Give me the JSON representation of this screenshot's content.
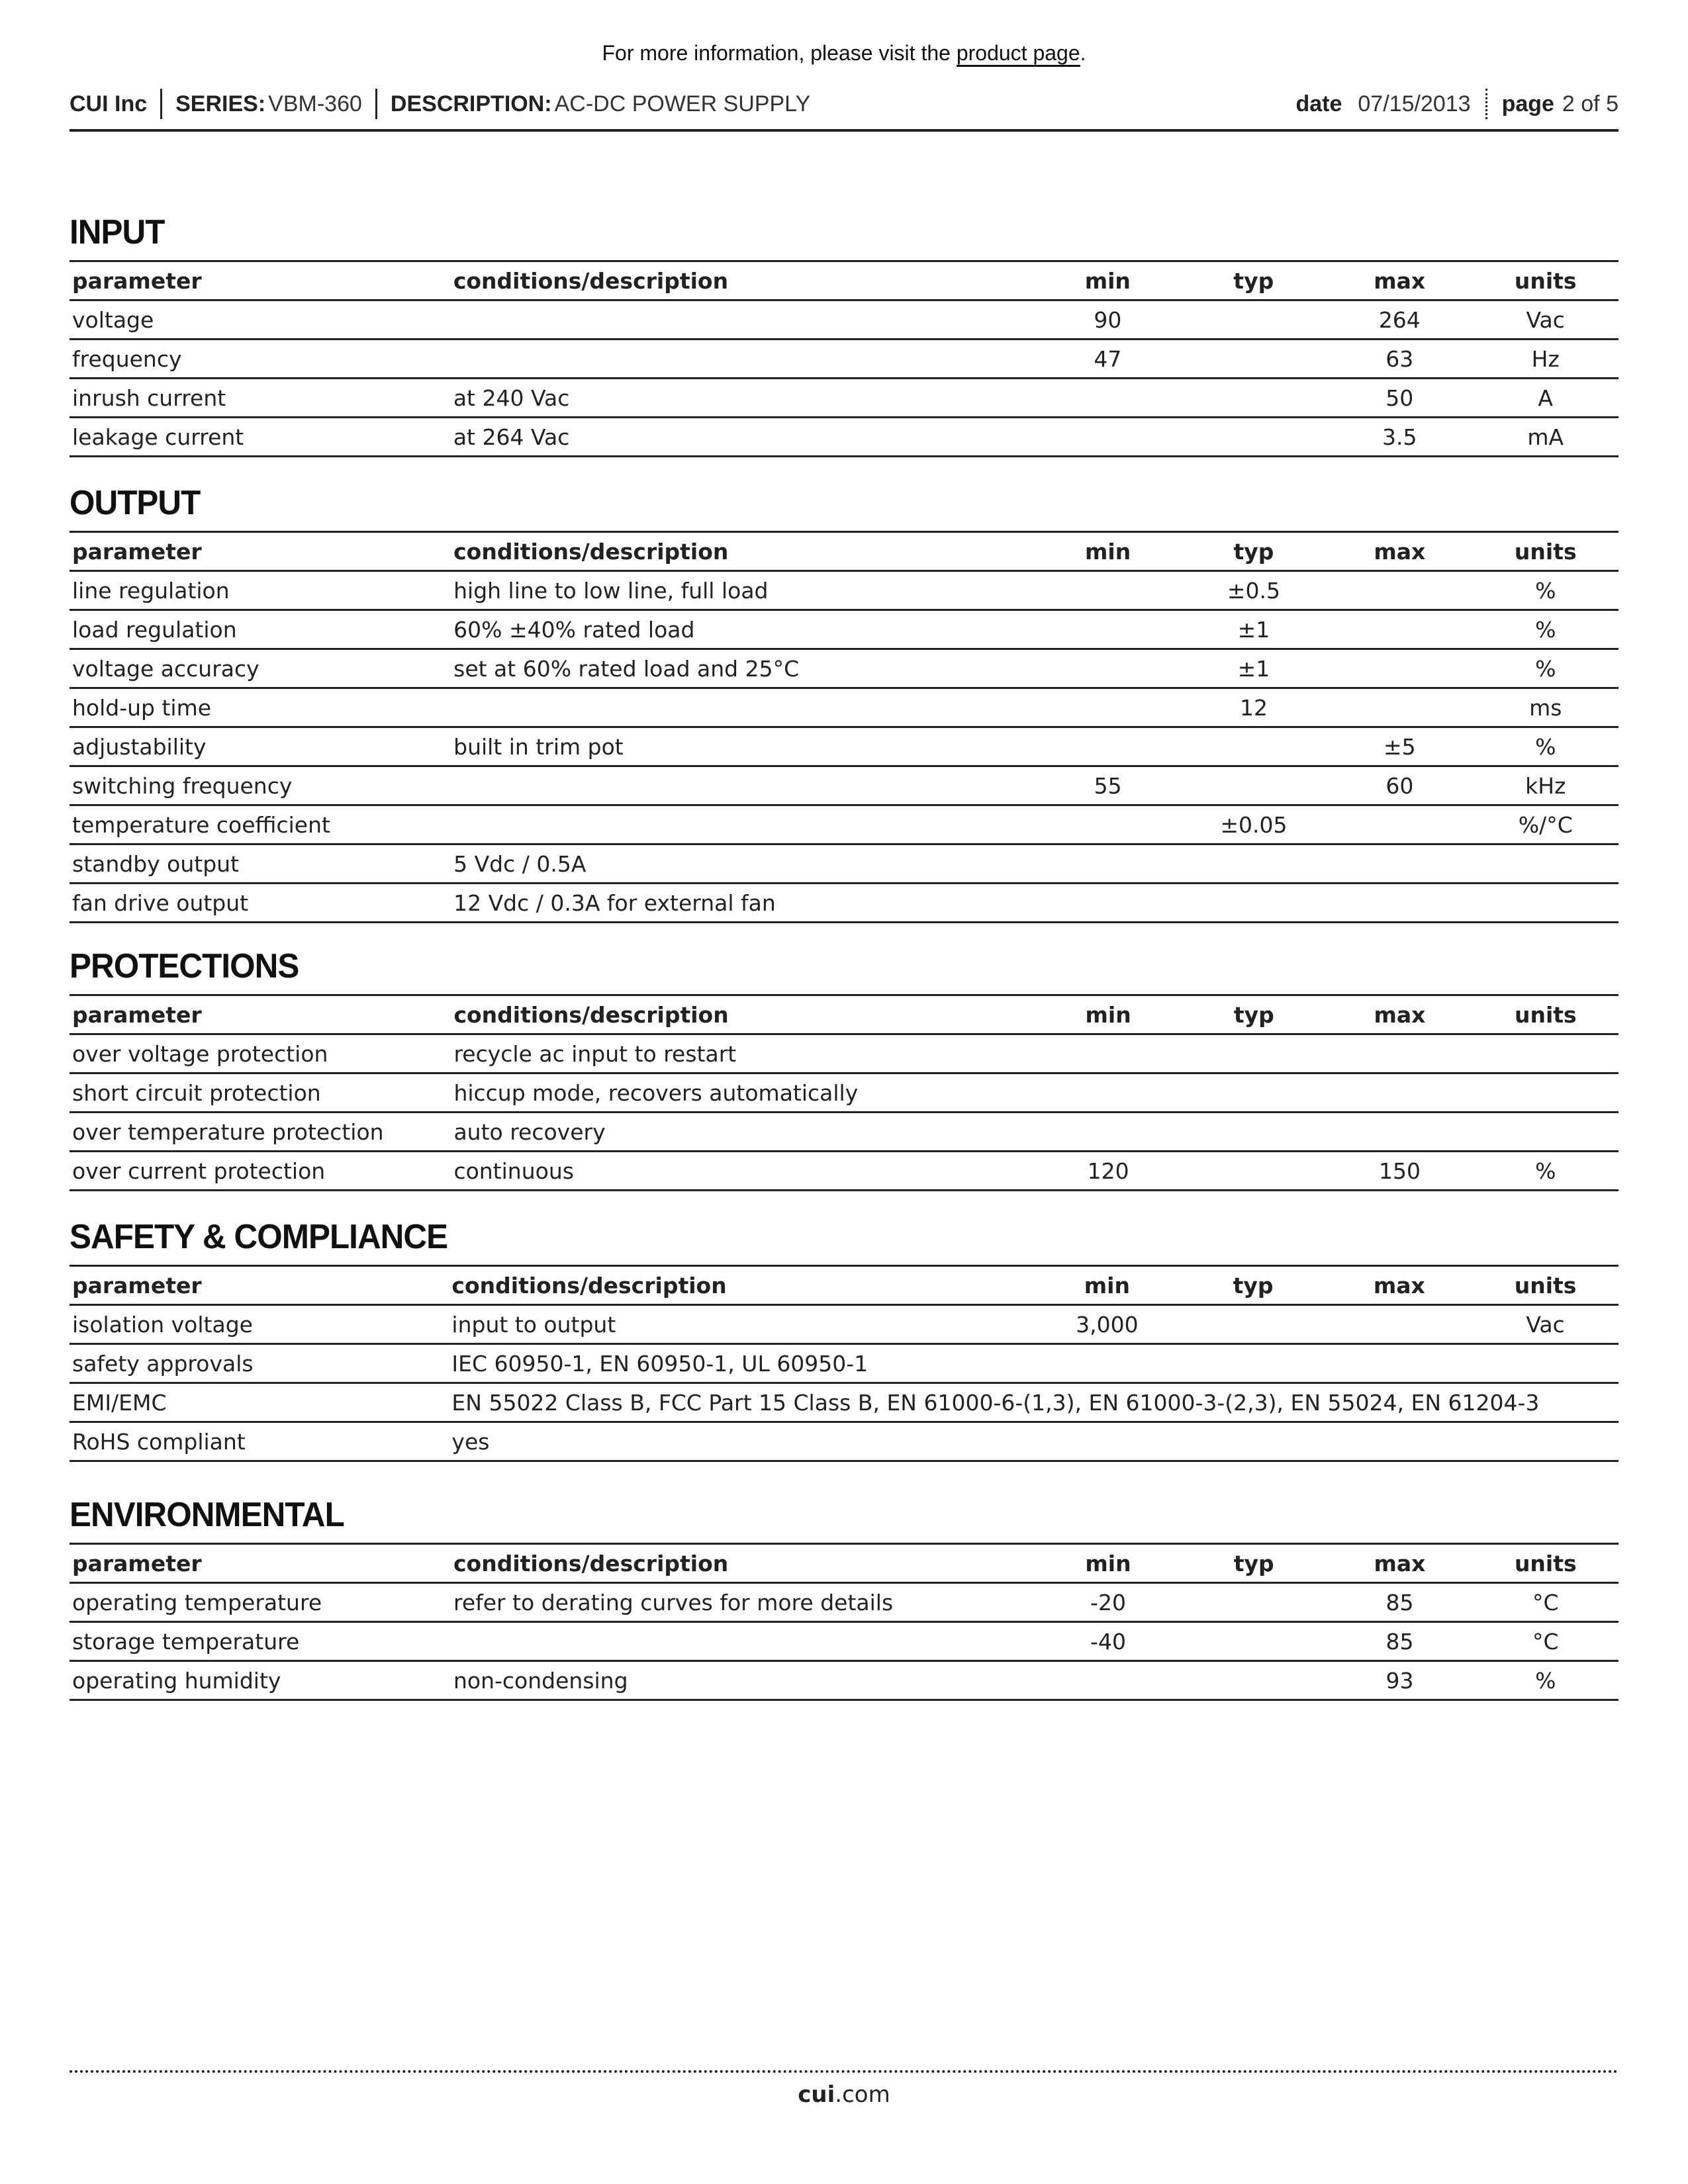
{
  "topnote": {
    "prefix": "For more information, please visit the ",
    "link": "product page",
    "suffix": "."
  },
  "header": {
    "company": "CUI Inc",
    "series_label": "SERIES:",
    "series": "VBM-360",
    "description_label": "DESCRIPTION:",
    "description": "AC-DC POWER SUPPLY",
    "date_label": "date",
    "date": "07/15/2013",
    "page_label": "page",
    "page": "2 of 5"
  },
  "columns": [
    "parameter",
    "conditions/description",
    "min",
    "typ",
    "max",
    "units"
  ],
  "sections": [
    {
      "title": "INPUT",
      "rows": [
        [
          "voltage",
          "",
          "90",
          "",
          "264",
          "Vac"
        ],
        [
          "frequency",
          "",
          "47",
          "",
          "63",
          "Hz"
        ],
        [
          "inrush current",
          "at 240 Vac",
          "",
          "",
          "50",
          "A"
        ],
        [
          "leakage current",
          "at 264 Vac",
          "",
          "",
          "3.5",
          "mA"
        ]
      ]
    },
    {
      "title": "OUTPUT",
      "rows": [
        [
          "line regulation",
          "high line to low line, full load",
          "",
          "±0.5",
          "",
          "%"
        ],
        [
          "load regulation",
          "60% ±40% rated load",
          "",
          "±1",
          "",
          "%"
        ],
        [
          "voltage accuracy",
          "set at 60% rated load and 25°C",
          "",
          "±1",
          "",
          "%"
        ],
        [
          "hold-up time",
          "",
          "",
          "12",
          "",
          "ms"
        ],
        [
          "adjustability",
          "built in trim pot",
          "",
          "",
          "±5",
          "%"
        ],
        [
          "switching frequency",
          "",
          "55",
          "",
          "60",
          "kHz"
        ],
        [
          "temperature coefficient",
          "",
          "",
          "±0.05",
          "",
          "%/°C"
        ],
        [
          "standby output",
          "5 Vdc / 0.5A",
          "",
          "",
          "",
          ""
        ],
        [
          "fan drive output",
          "12 Vdc / 0.3A for external fan",
          "",
          "",
          "",
          ""
        ]
      ]
    },
    {
      "title": "PROTECTIONS",
      "rows": [
        [
          "over voltage protection",
          "recycle ac input to restart",
          "",
          "",
          "",
          ""
        ],
        [
          "short circuit protection",
          "hiccup mode, recovers automatically",
          "",
          "",
          "",
          ""
        ],
        [
          "over temperature protection",
          "auto recovery",
          "",
          "",
          "",
          ""
        ],
        [
          "over current protection",
          "continuous",
          "120",
          "",
          "150",
          "%"
        ]
      ]
    },
    {
      "title": "SAFETY & COMPLIANCE",
      "rows": [
        [
          "isolation voltage",
          "input to output",
          "3,000",
          "",
          "",
          "Vac"
        ],
        [
          "safety approvals",
          "IEC 60950-1, EN 60950-1, UL 60950-1",
          "",
          "",
          "",
          ""
        ],
        [
          "EMI/EMC",
          "EN 55022 Class B, FCC Part 15 Class B, EN 61000-6-(1,3), EN 61000-3-(2,3), EN 55024, EN 61204-3",
          "",
          "",
          "",
          ""
        ],
        [
          "RoHS compliant",
          "yes",
          "",
          "",
          "",
          ""
        ]
      ]
    },
    {
      "title": "ENVIRONMENTAL",
      "rows": [
        [
          "operating temperature",
          "refer to derating curves for more details",
          "-20",
          "",
          "85",
          "°C"
        ],
        [
          "storage temperature",
          "",
          "-40",
          "",
          "85",
          "°C"
        ],
        [
          "operating humidity",
          "non-condensing",
          "",
          "",
          "93",
          "%"
        ]
      ]
    }
  ],
  "footer": {
    "bold": "cui",
    "rest": ".com"
  }
}
